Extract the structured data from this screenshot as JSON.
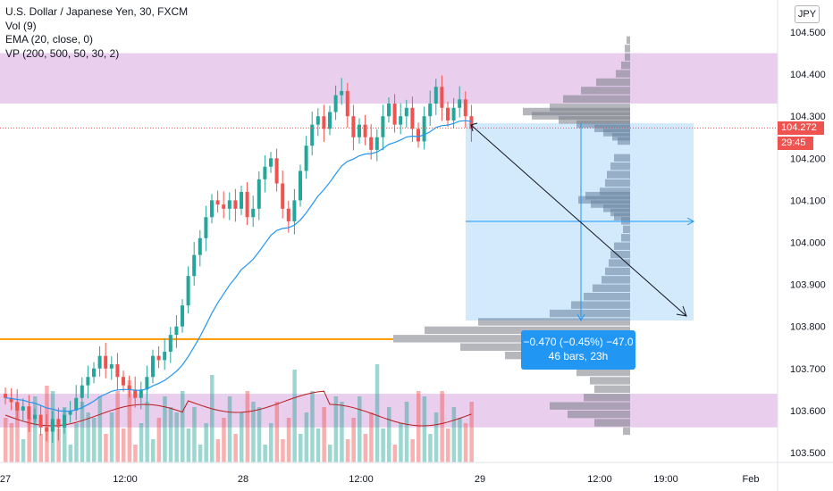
{
  "legend": {
    "title": "U.S. Dollar / Japanese Yen, 30, FXCM",
    "vol": "Vol (9)",
    "ema": "EMA (20, close, 0)",
    "vp": "VP (200, 500, 50, 30, 2)"
  },
  "currency": "JPY",
  "last_price": {
    "value": "104.272",
    "countdown": "29:45"
  },
  "measure": {
    "change": "−0.470 (−0.45%) −47.0",
    "bars": "46 bars, 23h"
  },
  "colors": {
    "up": "#26a69a",
    "down": "#ef5350",
    "ema": "#2196f3",
    "zone": "#e1bee7",
    "poc": "#ff9800",
    "vp": "#787b86"
  },
  "chart_data": {
    "type": "candlestick",
    "symbol": "USDJPY",
    "interval": "30",
    "x_ticks": [
      "27",
      "12:00",
      "28",
      "12:00",
      "29",
      "12:00",
      "19:00",
      "Feb"
    ],
    "y_ticks": [
      "104.500",
      "104.400",
      "104.300",
      "104.200",
      "104.100",
      "104.000",
      "103.900",
      "103.800",
      "103.700",
      "103.600",
      "103.500"
    ],
    "ylim": [
      103.46,
      104.53
    ],
    "close_sequence": [
      103.63,
      103.62,
      103.6,
      103.61,
      103.58,
      103.59,
      103.56,
      103.55,
      103.58,
      103.56,
      103.59,
      103.6,
      103.63,
      103.66,
      103.68,
      103.7,
      103.73,
      103.7,
      103.71,
      103.68,
      103.66,
      103.65,
      103.63,
      103.65,
      103.68,
      103.73,
      103.72,
      103.74,
      103.78,
      103.8,
      103.85,
      103.92,
      103.97,
      104.01,
      104.06,
      104.1,
      104.09,
      104.08,
      104.1,
      104.08,
      104.12,
      104.06,
      104.08,
      104.15,
      104.18,
      104.2,
      104.14,
      104.08,
      104.05,
      104.1,
      104.17,
      104.23,
      104.28,
      104.3,
      104.27,
      104.31,
      104.35,
      104.36,
      104.3,
      104.25,
      104.28,
      104.25,
      104.22,
      104.25,
      104.3,
      104.33,
      104.28,
      104.3,
      104.32,
      104.27,
      104.24,
      104.3,
      104.33,
      104.37,
      104.32,
      104.29,
      104.32,
      104.34,
      104.3,
      104.27
    ],
    "volume_profile_zones": [
      [
        104.33,
        104.45
      ],
      [
        103.56,
        103.64
      ]
    ],
    "poc_price": 103.77,
    "last_price": 104.272
  }
}
